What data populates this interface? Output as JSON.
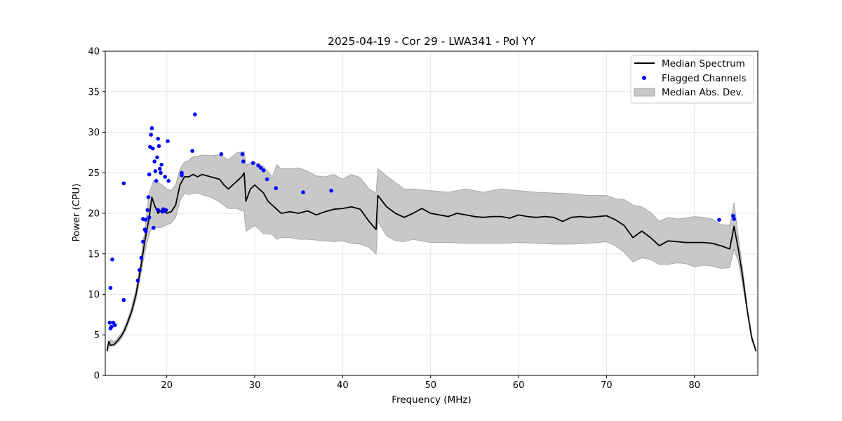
{
  "chart_data": {
    "type": "line",
    "title": "2025-04-19 - Cor 29 - LWA341 - Pol YY",
    "xlabel": "Frequency (MHz)",
    "ylabel": "Power (CPU)",
    "xlim": [
      13.0,
      87.2
    ],
    "ylim": [
      0,
      40
    ],
    "xticks": [
      20,
      30,
      40,
      50,
      60,
      70,
      80
    ],
    "yticks": [
      0,
      5,
      10,
      15,
      20,
      25,
      30,
      35,
      40
    ],
    "grid": true,
    "legend_position": "top-right",
    "legend": [
      "Median Spectrum",
      "Flagged Channels",
      "Median Abs. Dev."
    ],
    "colors": {
      "median": "#000000",
      "flagged": "#0000ff",
      "band_fill": "#c8c8c8",
      "band_edge": "#a8a8a8",
      "grid": "#e6e6e6"
    },
    "series": [
      {
        "name": "Median Spectrum",
        "x": [
          13.2,
          13.4,
          13.6,
          14.0,
          14.5,
          14.9,
          15.2,
          15.5,
          16.0,
          16.5,
          17.0,
          17.5,
          18.0,
          18.3,
          18.6,
          19.0,
          19.5,
          20.0,
          20.5,
          21.0,
          21.5,
          22.0,
          22.5,
          23.0,
          23.5,
          24.0,
          25.0,
          26.0,
          26.5,
          27.0,
          27.5,
          28.0,
          28.5,
          28.8,
          29.0,
          29.5,
          30.0,
          30.5,
          31.0,
          31.5,
          32.0,
          32.5,
          33.0,
          34.0,
          35.0,
          36.0,
          37.0,
          38.0,
          39.0,
          40.0,
          41.0,
          42.0,
          43.0,
          43.8,
          44.0,
          45.0,
          46.0,
          47.0,
          48.0,
          49.0,
          50.0,
          51.0,
          52.0,
          53.0,
          54.0,
          55.0,
          56.0,
          57.0,
          58.0,
          59.0,
          60.0,
          61.0,
          62.0,
          63.0,
          64.0,
          65.0,
          66.0,
          67.0,
          68.0,
          69.0,
          70.0,
          71.0,
          72.0,
          73.0,
          74.0,
          75.0,
          76.0,
          77.0,
          78.0,
          79.0,
          80.0,
          81.0,
          82.0,
          83.0,
          83.5,
          84.0,
          84.5,
          85.0,
          85.5,
          86.0,
          86.5,
          87.0
        ],
        "y": [
          3.0,
          4.2,
          3.7,
          3.8,
          4.4,
          5.0,
          5.6,
          6.4,
          7.9,
          10.0,
          13.0,
          16.6,
          19.5,
          22.0,
          21.0,
          20.0,
          20.5,
          20.0,
          20.2,
          21.0,
          23.5,
          24.5,
          24.5,
          24.8,
          24.5,
          24.8,
          24.5,
          24.2,
          23.5,
          23.0,
          23.5,
          24.0,
          24.5,
          25.0,
          21.5,
          23.0,
          23.5,
          23.0,
          22.5,
          21.5,
          21.0,
          20.5,
          20.0,
          20.2,
          20.0,
          20.3,
          19.8,
          20.2,
          20.5,
          20.6,
          20.8,
          20.5,
          19.0,
          18.0,
          22.2,
          20.8,
          20.0,
          19.5,
          20.0,
          20.6,
          20.0,
          19.8,
          19.6,
          20.0,
          19.8,
          19.6,
          19.5,
          19.6,
          19.6,
          19.4,
          19.8,
          19.6,
          19.5,
          19.6,
          19.5,
          19.0,
          19.5,
          19.6,
          19.5,
          19.6,
          19.7,
          19.2,
          18.5,
          17.0,
          17.8,
          17.0,
          16.0,
          16.6,
          16.5,
          16.4,
          16.4,
          16.4,
          16.3,
          16.0,
          15.8,
          15.6,
          18.4,
          15.5,
          12.0,
          8.0,
          4.7,
          3.0
        ]
      },
      {
        "name": "Median Abs. Dev.",
        "x": [
          13.2,
          13.6,
          14.0,
          14.5,
          15.0,
          15.5,
          16.0,
          16.5,
          17.0,
          17.5,
          18.0,
          18.5,
          19.0,
          19.5,
          20.0,
          20.5,
          21.0,
          21.5,
          22.0,
          22.5,
          23.0,
          23.5,
          24.0,
          25.0,
          26.0,
          27.0,
          28.0,
          28.8,
          29.0,
          30.0,
          31.0,
          32.0,
          32.5,
          33.0,
          34.0,
          35.0,
          36.0,
          37.0,
          38.0,
          39.0,
          40.0,
          41.0,
          42.0,
          43.0,
          43.8,
          44.0,
          45.0,
          46.0,
          47.0,
          48.0,
          50.0,
          52.0,
          54.0,
          56.0,
          58.0,
          60.0,
          62.0,
          64.0,
          66.0,
          68.0,
          70.0,
          71.0,
          72.0,
          73.0,
          74.0,
          75.0,
          76.0,
          77.0,
          78.0,
          79.0,
          80.0,
          81.0,
          82.0,
          83.0,
          84.0,
          84.5,
          85.0,
          85.5,
          86.0,
          86.5,
          87.0
        ],
        "upper": [
          3.3,
          4.4,
          4.1,
          4.7,
          5.5,
          6.8,
          8.4,
          10.6,
          13.8,
          18.0,
          22.5,
          24.0,
          23.8,
          23.5,
          23.0,
          22.8,
          23.5,
          25.5,
          26.3,
          26.5,
          27.0,
          27.0,
          27.2,
          27.1,
          27.2,
          26.6,
          27.5,
          27.6,
          26.0,
          26.3,
          25.8,
          24.5,
          26.0,
          25.5,
          25.5,
          25.6,
          25.2,
          24.6,
          24.5,
          24.8,
          24.2,
          24.8,
          24.4,
          23.0,
          22.5,
          25.5,
          24.6,
          23.8,
          23.0,
          23.0,
          22.8,
          22.6,
          23.0,
          22.6,
          23.0,
          22.8,
          22.6,
          22.5,
          22.4,
          22.2,
          22.2,
          21.8,
          21.7,
          21.0,
          20.8,
          20.1,
          19.0,
          19.5,
          19.3,
          19.4,
          19.6,
          19.5,
          19.3,
          18.6,
          18.5,
          21.3,
          17.0,
          13.0,
          8.4,
          5.0,
          3.1
        ],
        "lower": [
          2.9,
          3.9,
          3.6,
          4.1,
          4.8,
          6.0,
          7.5,
          9.4,
          12.2,
          15.2,
          17.5,
          18.5,
          18.2,
          18.3,
          18.6,
          18.8,
          19.5,
          21.5,
          22.5,
          22.3,
          22.5,
          22.5,
          22.3,
          22.0,
          21.4,
          20.6,
          20.6,
          20.2,
          17.8,
          18.5,
          17.5,
          17.4,
          16.8,
          17.0,
          17.0,
          16.8,
          16.8,
          16.7,
          16.6,
          16.5,
          16.6,
          16.3,
          16.2,
          15.8,
          15.0,
          19.0,
          17.2,
          16.6,
          16.5,
          16.8,
          16.4,
          16.4,
          16.3,
          16.3,
          16.3,
          16.4,
          16.3,
          16.2,
          16.2,
          16.3,
          16.5,
          16.0,
          15.2,
          14.0,
          14.5,
          14.3,
          13.7,
          13.7,
          13.9,
          13.8,
          13.4,
          13.6,
          13.5,
          13.2,
          13.3,
          15.6,
          14.0,
          11.0,
          7.8,
          4.4,
          2.9
        ]
      },
      {
        "name": "Flagged Channels",
        "x": [
          13.6,
          13.8,
          13.5,
          13.7,
          13.9,
          13.6,
          14.1,
          15.1,
          15.1,
          16.7,
          16.9,
          17.1,
          17.3,
          17.5,
          17.6,
          17.8,
          17.9,
          18.0,
          18.1,
          18.2,
          18.3,
          18.4,
          18.6,
          18.7,
          18.8,
          18.9,
          19.0,
          19.1,
          19.2,
          19.3,
          19.4,
          19.5,
          19.6,
          19.7,
          19.8,
          19.9,
          20.1,
          20.2,
          19.0,
          18.5,
          18.0,
          17.6,
          17.3,
          21.7,
          21.7,
          22.9,
          23.2,
          26.2,
          28.6,
          28.7,
          29.8,
          30.4,
          30.7,
          31.0,
          31.4,
          32.4,
          35.5,
          38.7,
          82.8,
          84.4,
          84.5
        ],
        "y": [
          5.8,
          14.3,
          6.5,
          6.0,
          6.5,
          10.8,
          6.2,
          23.7,
          9.3,
          11.7,
          13.0,
          14.5,
          16.5,
          18.0,
          19.2,
          20.4,
          22.0,
          24.8,
          28.2,
          29.7,
          30.5,
          28.0,
          26.4,
          25.2,
          24.0,
          26.9,
          29.2,
          28.3,
          25.5,
          25.0,
          26.0,
          20.2,
          20.5,
          20.3,
          24.5,
          20.4,
          28.9,
          24.0,
          20.4,
          18.2,
          19.5,
          17.8,
          19.3,
          24.7,
          25.0,
          27.7,
          32.2,
          27.3,
          27.3,
          26.4,
          26.2,
          25.9,
          25.6,
          25.3,
          24.2,
          23.1,
          22.6,
          22.8,
          19.2,
          19.7,
          19.3
        ]
      }
    ]
  }
}
